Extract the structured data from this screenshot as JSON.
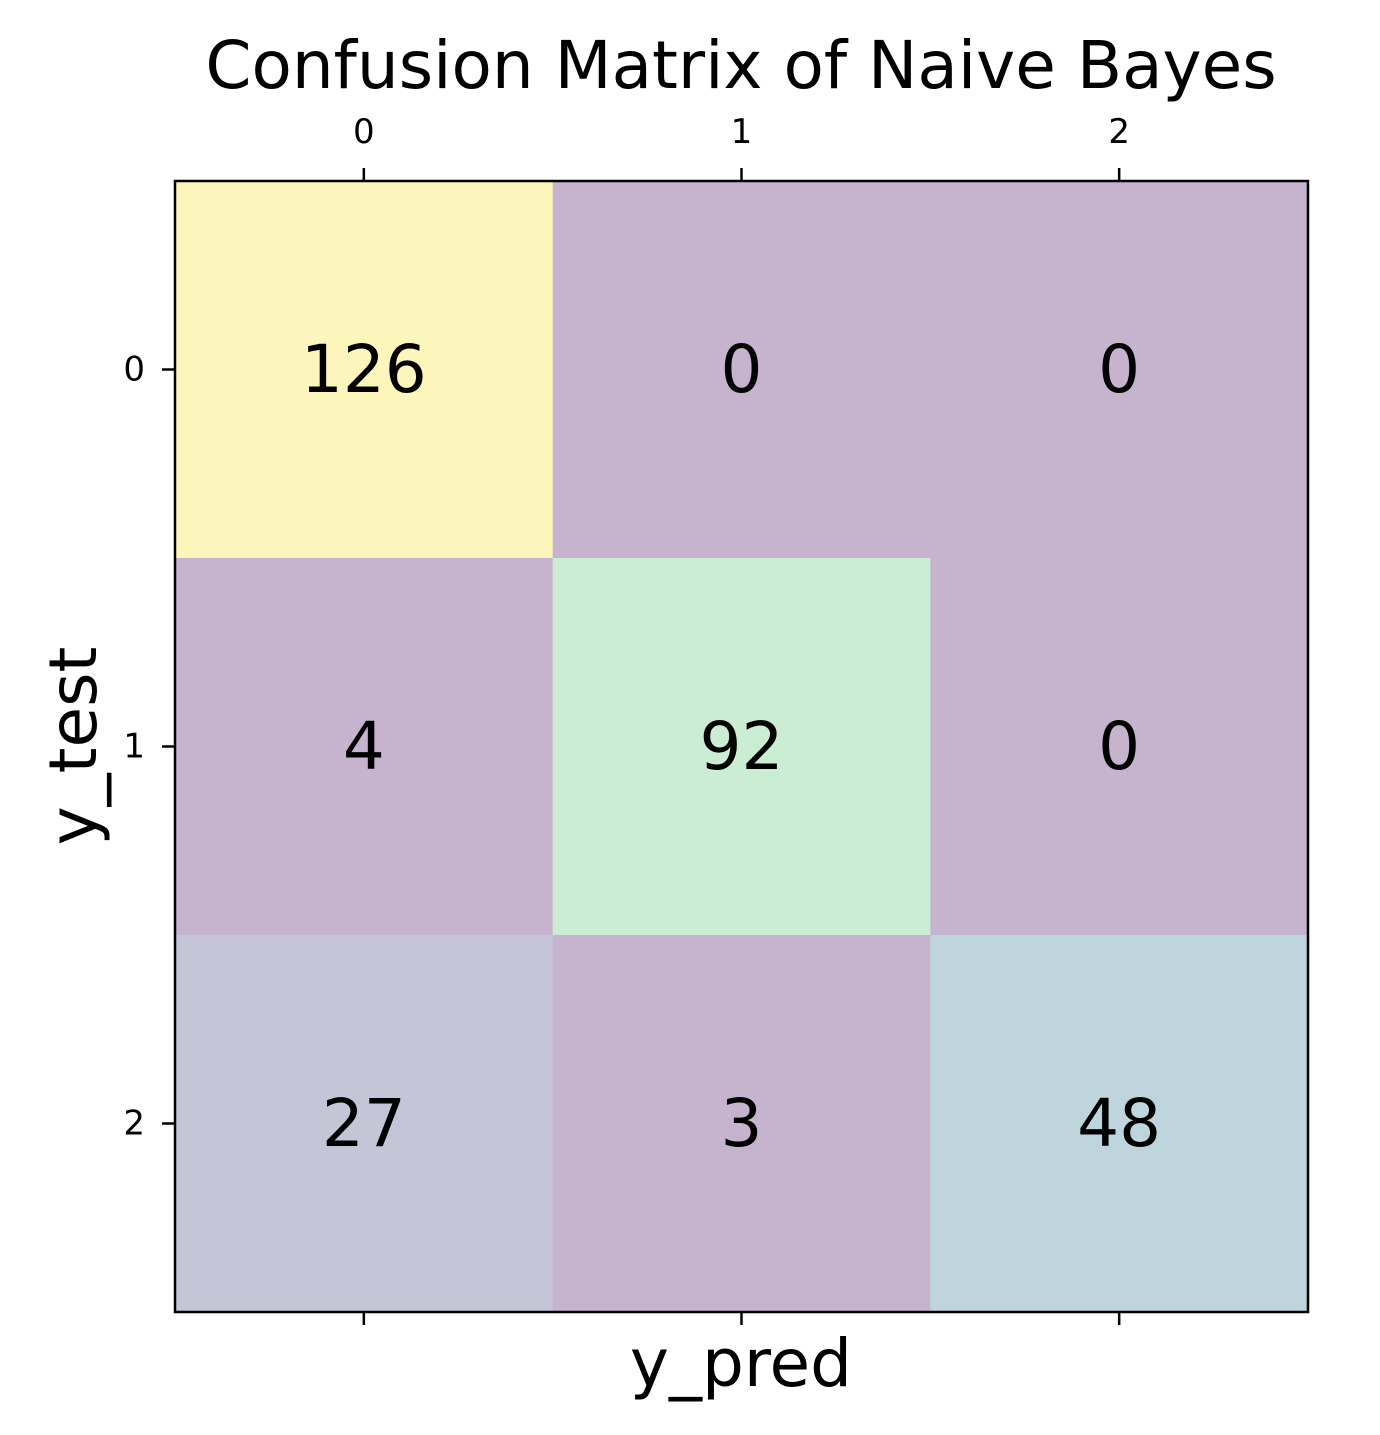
{
  "chart_data": {
    "type": "heatmap",
    "title": "Confusion Matrix of Naive Bayes",
    "xlabel": "y_pred",
    "ylabel": "y_test",
    "x_ticks": [
      "0",
      "1",
      "2"
    ],
    "y_ticks": [
      "0",
      "1",
      "2"
    ],
    "x_ticks_position": "top",
    "grid": false,
    "colormap": "viridis",
    "alpha": 0.3,
    "matrix": [
      [
        126,
        0,
        0
      ],
      [
        4,
        92,
        0
      ],
      [
        27,
        3,
        48
      ]
    ],
    "cell_labels": [
      [
        "126",
        "0",
        "0"
      ],
      [
        "4",
        "92",
        "0"
      ],
      [
        "27",
        "3",
        "48"
      ]
    ],
    "cell_colors": [
      [
        "#fcf6bd",
        "#c6b3cd",
        "#c6b3cd"
      ],
      [
        "#c6b3cd",
        "#cbedd3",
        "#c6b3cd"
      ],
      [
        "#c4c6d8",
        "#c6b3cd",
        "#bfd5de"
      ]
    ]
  }
}
